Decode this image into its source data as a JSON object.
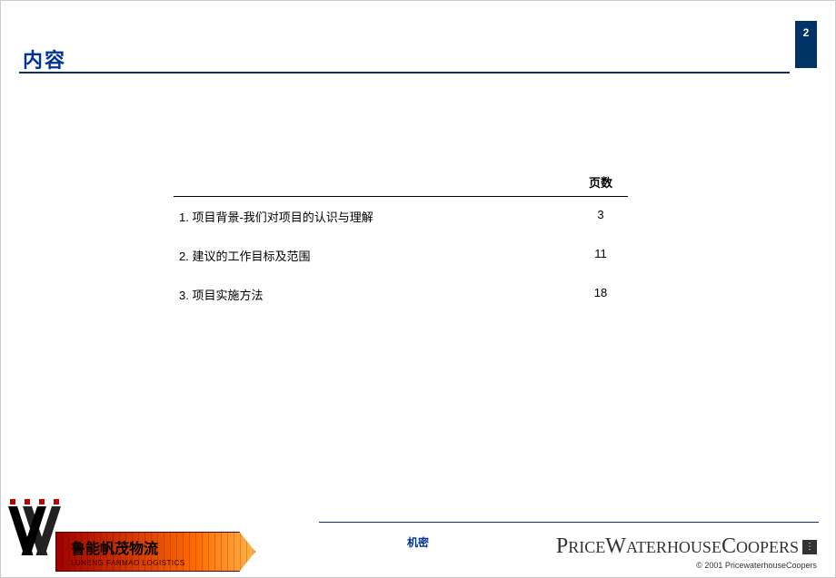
{
  "page_number": "2",
  "title": "内容",
  "toc": {
    "header": "页数",
    "rows": [
      {
        "label": "1. 项目背景-我们对项目的认识与理解",
        "page": "3"
      },
      {
        "label": "2. 建议的工作目标及范围",
        "page": "11"
      },
      {
        "label": "3. 项目实施方法",
        "page": "18"
      }
    ]
  },
  "footer": {
    "classification": "机密",
    "pwc_text": "PricewaterhouseCoopers",
    "copyright": "© 2001  PricewaterhouseCoopers"
  },
  "client_logo": {
    "cn": "鲁能帆茂物流",
    "en": "LUNENG FANMAO LOGISTICS"
  },
  "colors": {
    "brand_blue": "#003366",
    "title_blue": "#003399",
    "banner_red": "#a00000",
    "banner_orange": "#ff6a00"
  }
}
